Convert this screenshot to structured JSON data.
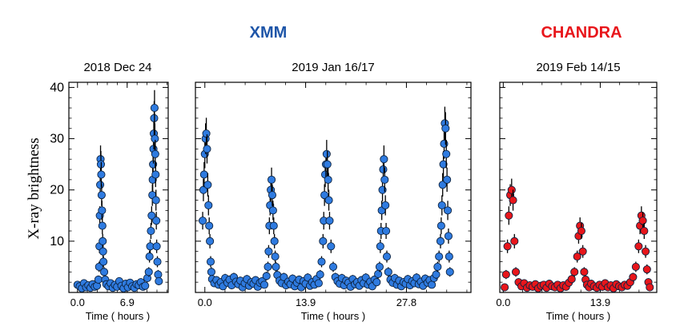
{
  "figure": {
    "missions": [
      {
        "name": "XMM",
        "color": "#1e55a8"
      },
      {
        "name": "CHANDRA",
        "color": "#e8161b"
      }
    ],
    "ylabel": "X-ray brightness",
    "xlabel": "Time ( hours )"
  },
  "chart_data": [
    {
      "type": "scatter",
      "title": "2018 Dec 24",
      "instrument": "XMM",
      "marker_color": "#2f7be0",
      "xlabel": "Time ( hours )",
      "ylabel": "X-ray brightness",
      "xlim": [
        -1.2,
        12.6
      ],
      "ylim": [
        0,
        41
      ],
      "xticks": [
        0.0,
        6.9
      ],
      "xtick_labels": [
        "0.0",
        "6.9"
      ],
      "yticks": [
        10,
        20,
        30,
        40
      ],
      "ytick_labels": [
        "10",
        "20",
        "30",
        "40"
      ],
      "flares": [
        {
          "peak_x": 3.3,
          "peak_y": 26
        },
        {
          "peak_x": 10.6,
          "peak_y": 36
        }
      ],
      "x": [
        0.0,
        0.3,
        0.6,
        0.9,
        1.2,
        1.5,
        1.8,
        2.1,
        2.4,
        2.7,
        2.9,
        3.0,
        3.05,
        3.1,
        3.15,
        3.2,
        3.25,
        3.3,
        3.35,
        3.4,
        3.45,
        3.5,
        3.55,
        3.6,
        3.7,
        3.85,
        4.0,
        4.3,
        4.6,
        4.9,
        5.2,
        5.5,
        5.8,
        6.1,
        6.4,
        6.7,
        7.0,
        7.3,
        7.6,
        7.9,
        8.2,
        8.5,
        8.8,
        9.1,
        9.4,
        9.7,
        9.9,
        10.0,
        10.1,
        10.2,
        10.3,
        10.4,
        10.45,
        10.5,
        10.55,
        10.6,
        10.65,
        10.7,
        10.75,
        10.8,
        10.85,
        10.9,
        10.95,
        11.0,
        11.1,
        11.2,
        11.3
      ],
      "y": [
        1.5,
        1.2,
        0.8,
        1.8,
        1.0,
        1.4,
        0.9,
        1.6,
        1.1,
        1.3,
        2.5,
        5,
        9,
        15,
        21,
        26,
        25,
        23,
        19,
        16,
        13,
        10,
        8,
        6,
        4,
        2.5,
        1.6,
        1.2,
        1.8,
        0.9,
        1.5,
        1.1,
        2.2,
        1.3,
        0.8,
        1.7,
        1.0,
        1.9,
        1.2,
        0.9,
        1.6,
        1.4,
        2.0,
        1.1,
        1.3,
        2.8,
        4,
        7,
        9,
        12,
        15,
        19,
        22,
        25,
        28,
        31,
        34,
        36,
        30,
        27,
        23,
        18,
        14,
        9,
        6,
        3.5,
        2.2
      ]
    },
    {
      "type": "scatter",
      "title": "2019 Jan 16/17",
      "instrument": "XMM",
      "marker_color": "#2f7be0",
      "xlabel": "Time ( hours )",
      "xlim": [
        -1.3,
        36.7
      ],
      "ylim": [
        0,
        41
      ],
      "xticks": [
        0.0,
        13.9,
        27.8
      ],
      "xtick_labels": [
        "0.0",
        "13.9",
        "27.8"
      ],
      "yticks": [
        10,
        20,
        30,
        40
      ],
      "flares": [
        {
          "peak_x": 0.2,
          "peak_y": 31
        },
        {
          "peak_x": 9.1,
          "peak_y": 22
        },
        {
          "peak_x": 16.7,
          "peak_y": 27
        },
        {
          "peak_x": 24.6,
          "peak_y": 26
        },
        {
          "peak_x": 33.0,
          "peak_y": 33
        }
      ],
      "x": [
        -0.3,
        -0.2,
        -0.1,
        0.0,
        0.1,
        0.2,
        0.3,
        0.4,
        0.5,
        0.6,
        0.7,
        0.8,
        0.9,
        1.0,
        1.3,
        1.6,
        1.9,
        2.2,
        2.5,
        2.8,
        3.1,
        3.4,
        3.7,
        4.0,
        4.3,
        4.6,
        4.9,
        5.2,
        5.5,
        5.8,
        6.1,
        6.4,
        6.7,
        7.0,
        7.3,
        7.6,
        7.9,
        8.2,
        8.5,
        8.7,
        8.8,
        8.9,
        9.0,
        9.1,
        9.2,
        9.3,
        9.4,
        9.5,
        9.6,
        9.7,
        9.8,
        10.0,
        10.3,
        10.6,
        10.9,
        11.2,
        11.5,
        11.8,
        12.1,
        12.4,
        12.7,
        13.0,
        13.3,
        13.6,
        13.9,
        14.2,
        14.5,
        14.8,
        15.1,
        15.4,
        15.7,
        15.9,
        16.1,
        16.3,
        16.4,
        16.5,
        16.6,
        16.7,
        16.8,
        16.9,
        17.0,
        17.1,
        17.2,
        17.4,
        17.7,
        18.0,
        18.3,
        18.6,
        18.9,
        19.2,
        19.5,
        19.8,
        20.1,
        20.4,
        20.7,
        21.0,
        21.3,
        21.6,
        21.9,
        22.2,
        22.5,
        22.8,
        23.1,
        23.4,
        23.7,
        23.9,
        24.1,
        24.2,
        24.3,
        24.4,
        24.5,
        24.6,
        24.7,
        24.8,
        24.9,
        25.0,
        25.1,
        25.3,
        25.6,
        25.9,
        26.2,
        26.5,
        26.8,
        27.1,
        27.4,
        27.7,
        28.0,
        28.3,
        28.6,
        28.9,
        29.2,
        29.5,
        29.8,
        30.1,
        30.4,
        30.7,
        31.0,
        31.3,
        31.6,
        31.9,
        32.1,
        32.3,
        32.5,
        32.6,
        32.7,
        32.8,
        32.9,
        33.0,
        33.1,
        33.2,
        33.3,
        33.4,
        33.5,
        33.6,
        33.7,
        33.8
      ],
      "y": [
        14,
        20,
        23,
        27,
        30,
        31,
        28,
        21,
        17,
        13,
        10,
        6,
        4,
        2.6,
        1.8,
        2.4,
        1.5,
        2.0,
        1.2,
        2.8,
        1.9,
        2.5,
        1.4,
        3.0,
        2.1,
        1.6,
        2.3,
        1.0,
        1.8,
        2.6,
        1.3,
        2.0,
        1.7,
        2.4,
        1.1,
        1.9,
        2.2,
        1.5,
        3.2,
        5,
        8,
        13,
        17,
        20,
        22,
        19,
        16,
        13,
        10,
        7,
        5,
        3.4,
        2.3,
        1.8,
        3.0,
        1.4,
        2.1,
        1.6,
        2.7,
        1.2,
        1.9,
        2.5,
        1.0,
        2.2,
        1.7,
        2.9,
        1.3,
        2.0,
        1.5,
        2.6,
        1.8,
        3.5,
        6,
        10,
        14,
        19,
        23,
        25,
        27,
        25,
        22,
        18,
        14,
        9,
        5,
        3.0,
        2.2,
        1.7,
        2.8,
        1.4,
        2.3,
        1.9,
        1.1,
        2.6,
        1.6,
        2.0,
        1.3,
        2.4,
        1.8,
        2.9,
        1.5,
        2.1,
        1.2,
        2.5,
        2.0,
        3.6,
        5,
        9,
        12,
        16,
        20,
        24,
        26,
        22,
        17,
        12,
        7,
        4,
        2.5,
        1.9,
        2.8,
        1.5,
        2.3,
        1.2,
        2.0,
        1.7,
        2.6,
        1.4,
        2.2,
        1.8,
        2.9,
        1.6,
        2.1,
        1.3,
        2.7,
        1.9,
        2.4,
        1.5,
        2.8,
        3.5,
        5,
        7,
        10,
        13,
        17,
        21,
        25,
        29,
        33,
        32,
        27,
        22,
        16,
        11,
        7,
        4
      ]
    },
    {
      "type": "scatter",
      "title": "2019 Feb 14/15",
      "instrument": "CHANDRA",
      "marker_color": "#e8161b",
      "xlabel": "Time ( hours )",
      "xlim": [
        -0.5,
        22.0
      ],
      "ylim": [
        0,
        41
      ],
      "xticks": [
        0.0,
        13.9
      ],
      "xtick_labels": [
        "0.0",
        "13.9"
      ],
      "yticks": [
        10,
        20,
        30,
        40
      ],
      "flares": [
        {
          "peak_x": 1.0,
          "peak_y": 20
        },
        {
          "peak_x": 11.2,
          "peak_y": 13
        },
        {
          "peak_x": 20.0,
          "peak_y": 15
        }
      ],
      "x": [
        0.2,
        0.4,
        0.6,
        0.8,
        1.0,
        1.2,
        1.4,
        1.6,
        1.8,
        2.2,
        2.6,
        3.0,
        3.4,
        3.8,
        4.2,
        4.6,
        5.0,
        5.4,
        5.8,
        6.2,
        6.6,
        7.0,
        7.4,
        7.8,
        8.2,
        8.6,
        9.0,
        9.4,
        9.8,
        10.2,
        10.6,
        10.8,
        11.0,
        11.2,
        11.4,
        11.6,
        11.8,
        12.0,
        12.3,
        12.6,
        13.0,
        13.4,
        13.8,
        14.2,
        14.6,
        15.0,
        15.4,
        15.8,
        16.2,
        16.6,
        17.0,
        17.4,
        17.8,
        18.2,
        18.6,
        19.0,
        19.4,
        19.6,
        19.8,
        20.0,
        20.2,
        20.4,
        20.6,
        20.8,
        21.0
      ],
      "y": [
        1.0,
        3.5,
        9,
        15,
        19,
        20,
        18,
        10,
        4,
        2.0,
        1.2,
        1.8,
        0.9,
        1.4,
        1.1,
        1.6,
        0.8,
        1.3,
        1.5,
        0.9,
        1.7,
        1.2,
        1.0,
        1.5,
        0.8,
        1.4,
        1.1,
        1.9,
        2.6,
        4,
        7,
        11,
        13,
        12,
        8,
        4,
        2.5,
        1.5,
        1.0,
        1.7,
        1.2,
        0.9,
        1.5,
        1.1,
        1.8,
        1.0,
        1.4,
        0.8,
        1.6,
        1.2,
        1.0,
        1.5,
        1.3,
        2.0,
        3.0,
        5,
        9,
        13,
        15,
        14,
        12,
        8,
        4.5,
        2,
        1.0
      ]
    }
  ]
}
